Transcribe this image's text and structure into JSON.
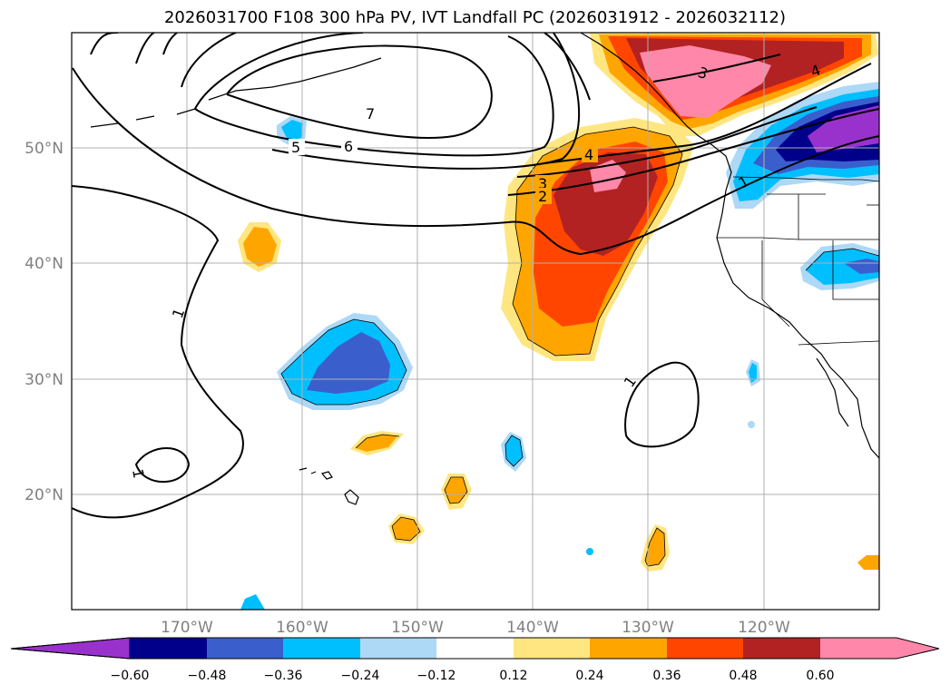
{
  "title": "2026031700 F108 300 hPa PV, IVT Landfall PC (2026031912 - 2026032112)",
  "map": {
    "lon_range": [
      -180,
      -110
    ],
    "lat_range": [
      10,
      60
    ],
    "lon_ticks": [
      {
        "value": -170,
        "label": "170°W"
      },
      {
        "value": -160,
        "label": "160°W"
      },
      {
        "value": -150,
        "label": "150°W"
      },
      {
        "value": -140,
        "label": "140°W"
      },
      {
        "value": -130,
        "label": "130°W"
      },
      {
        "value": -120,
        "label": "120°W"
      }
    ],
    "lat_ticks": [
      {
        "value": 20,
        "label": "20°N"
      },
      {
        "value": 30,
        "label": "30°N"
      },
      {
        "value": 40,
        "label": "40°N"
      },
      {
        "value": 50,
        "label": "50°N"
      }
    ],
    "grid": true
  },
  "colorbar": {
    "ticks": [
      "−0.60",
      "−0.48",
      "−0.36",
      "−0.24",
      "−0.12",
      "0.12",
      "0.24",
      "0.36",
      "0.48",
      "0.60"
    ],
    "colors": [
      "#9932cc",
      "#00008b",
      "#3a5fcd",
      "#00bfff",
      "#add8f6",
      "#ffffff",
      "#ffe680",
      "#ffa500",
      "#ff4500",
      "#b22222",
      "#ff88aa"
    ],
    "extend": "both"
  },
  "contour_labels": [
    "7",
    "6",
    "5",
    "4",
    "3",
    "2",
    "1",
    "1",
    "1",
    "1",
    "2",
    "3",
    "4"
  ]
}
